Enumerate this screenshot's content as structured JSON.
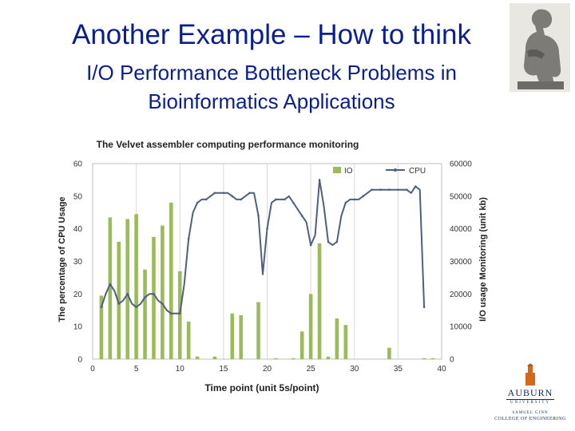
{
  "slide": {
    "title": "Another Example – How to think",
    "subtitle_line1": "I/O Performance Bottleneck Problems in",
    "subtitle_line2": "Bioinformatics Applications",
    "title_color": "#0a1f8f"
  },
  "logo": {
    "name": "AUBURN",
    "university": "UNIVERSITY",
    "school_line1": "SAMUEL GINN",
    "school_line2": "COLLEGE OF ENGINEERING"
  },
  "chart_data": {
    "type": "bar",
    "title": "The Velvet assembler computing performance monitoring",
    "xlabel": "Time point (unit 5s/point)",
    "ylabel": "The percentage of CPU Usage",
    "y2label": "I/O usage Monitoring (unit kb)",
    "xlim": [
      0,
      40
    ],
    "ylim": [
      0,
      60
    ],
    "y2lim": [
      0,
      60000
    ],
    "x_ticks": [
      0,
      5,
      10,
      15,
      20,
      25,
      30,
      35,
      40
    ],
    "y_ticks": [
      0,
      10,
      20,
      30,
      40,
      50,
      60
    ],
    "y2_ticks": [
      0,
      10000,
      20000,
      30000,
      40000,
      50000,
      60000
    ],
    "grid": "vertical",
    "legend_position": "top-right",
    "colors": {
      "bar": "#9bbb59",
      "line": "#4f5f7f",
      "frame": "#bfbfbf"
    },
    "series": [
      {
        "name": "IO",
        "type": "bar",
        "axis": "right",
        "x": [
          1,
          2,
          3,
          4,
          5,
          6,
          7,
          8,
          9,
          10,
          11,
          12,
          14,
          16,
          17,
          19,
          21,
          23,
          24,
          25,
          26,
          27,
          28,
          29,
          34,
          38,
          39
        ],
        "values": [
          19500,
          43500,
          36000,
          43000,
          44500,
          27500,
          37500,
          41000,
          48000,
          27000,
          11500,
          800,
          800,
          14000,
          13500,
          17500,
          300,
          300,
          8500,
          20000,
          35500,
          800,
          12500,
          10500,
          3500,
          300,
          300
        ]
      },
      {
        "name": "CPU",
        "type": "line",
        "axis": "left",
        "x": [
          1,
          1.5,
          2,
          2.5,
          3,
          3.5,
          4,
          4.5,
          5,
          5.5,
          6,
          6.5,
          7,
          7.5,
          8,
          8.5,
          9,
          9.5,
          10,
          10.5,
          11,
          11.5,
          12,
          12.5,
          13,
          13.5,
          14,
          14.5,
          15,
          15.5,
          16,
          16.5,
          17,
          17.5,
          18,
          18.5,
          19,
          19.5,
          20,
          20.5,
          21,
          21.5,
          22,
          22.5,
          23,
          23.5,
          24,
          24.5,
          25,
          25.5,
          26,
          26.5,
          27,
          27.5,
          28,
          28.5,
          29,
          29.5,
          30,
          30.5,
          31,
          31.5,
          32,
          32.5,
          33,
          33.5,
          34,
          34.5,
          35,
          35.5,
          36,
          36.5,
          37,
          37.5,
          38
        ],
        "values": [
          16,
          20,
          23,
          21,
          17,
          18,
          20,
          17,
          16,
          17,
          19,
          20,
          20,
          18,
          17,
          15,
          14,
          14,
          14,
          23,
          37,
          45,
          48,
          49,
          49,
          50,
          51,
          51,
          51,
          51,
          50,
          49,
          49,
          50,
          51,
          51,
          44,
          26,
          40,
          48,
          49,
          49,
          49,
          50,
          48,
          46,
          44,
          42,
          35,
          38,
          55,
          47,
          36,
          35,
          36,
          44,
          48,
          49,
          49,
          49,
          50,
          51,
          52,
          52,
          52,
          52,
          52,
          52,
          52,
          52,
          52,
          51,
          53,
          52,
          16
        ]
      }
    ]
  }
}
